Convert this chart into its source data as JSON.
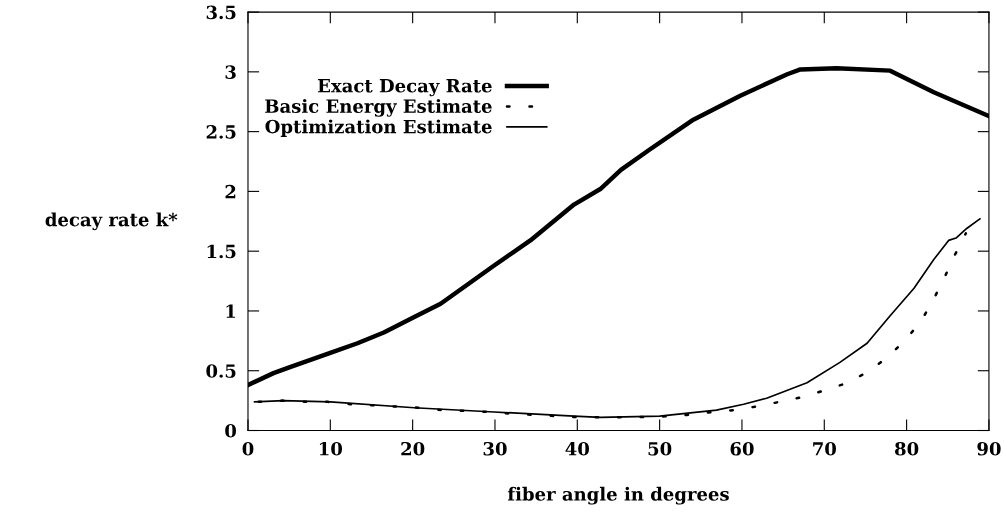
{
  "chart_data": {
    "type": "line",
    "xlabel": "fiber angle in degrees",
    "ylabel": "decay rate k*",
    "xlim": [
      0,
      90
    ],
    "xticks": [
      0,
      10,
      20,
      30,
      40,
      50,
      60,
      70,
      80,
      90
    ],
    "ylim": [
      0,
      3.5
    ],
    "yticks": [
      0,
      0.5,
      1,
      1.5,
      2,
      2.5,
      3,
      3.5
    ],
    "grid": false,
    "legend": "top left",
    "series": [
      {
        "name": "Exact Decay Rate",
        "color": "#000000",
        "line_style": "solid",
        "x": [
          0,
          3.1,
          5.1,
          10,
          13.3,
          16.5,
          20.2,
          23.4,
          29.9,
          34.3,
          39.6,
          42.8,
          45.3,
          48.8,
          54.1,
          59.8,
          65.5,
          67.1,
          71.5,
          78,
          83.3,
          90
        ],
        "values": [
          0.38,
          0.48,
          0.53,
          0.65,
          0.73,
          0.82,
          0.95,
          1.06,
          1.38,
          1.59,
          1.89,
          2.02,
          2.18,
          2.35,
          2.6,
          2.8,
          2.98,
          3.02,
          3.03,
          3.01,
          2.83,
          2.63
        ]
      },
      {
        "name": "Basic Energy Estimate",
        "color": "#000000",
        "line_style": "dotted",
        "x": [
          1.3,
          4.1,
          6.9,
          9.7,
          12.5,
          15.3,
          18.1,
          20.9,
          23.7,
          26.5,
          29.3,
          32.1,
          34.9,
          37.7,
          40.5,
          43.3,
          46.1,
          48.9,
          51.7,
          53.3,
          55.9,
          58.9,
          61.7,
          64.6,
          67.4,
          70.2,
          72.9,
          75.5,
          77.8,
          79.9,
          81.8,
          83.3,
          84.6,
          85.8,
          87.2
        ],
        "values": [
          0.24,
          0.25,
          0.24,
          0.24,
          0.22,
          0.21,
          0.2,
          0.19,
          0.17,
          0.165,
          0.155,
          0.14,
          0.13,
          0.12,
          0.11,
          0.11,
          0.11,
          0.115,
          0.12,
          0.13,
          0.15,
          0.17,
          0.2,
          0.24,
          0.28,
          0.34,
          0.4,
          0.5,
          0.62,
          0.76,
          0.92,
          1.1,
          1.28,
          1.46,
          1.65
        ]
      },
      {
        "name": "Optimization Estimate",
        "color": "#000000",
        "line_style": "solid",
        "x": [
          0.8,
          4.3,
          10,
          20.2,
          29.9,
          39.6,
          42.8,
          50,
          56.9,
          60.2,
          63,
          67.9,
          71.9,
          75.2,
          78,
          80.9,
          83.3,
          85.1,
          86,
          87.3,
          88.9
        ],
        "values": [
          0.24,
          0.25,
          0.24,
          0.19,
          0.155,
          0.12,
          0.11,
          0.12,
          0.17,
          0.22,
          0.27,
          0.4,
          0.57,
          0.73,
          0.96,
          1.19,
          1.43,
          1.59,
          1.61,
          1.69,
          1.77
        ]
      }
    ]
  }
}
